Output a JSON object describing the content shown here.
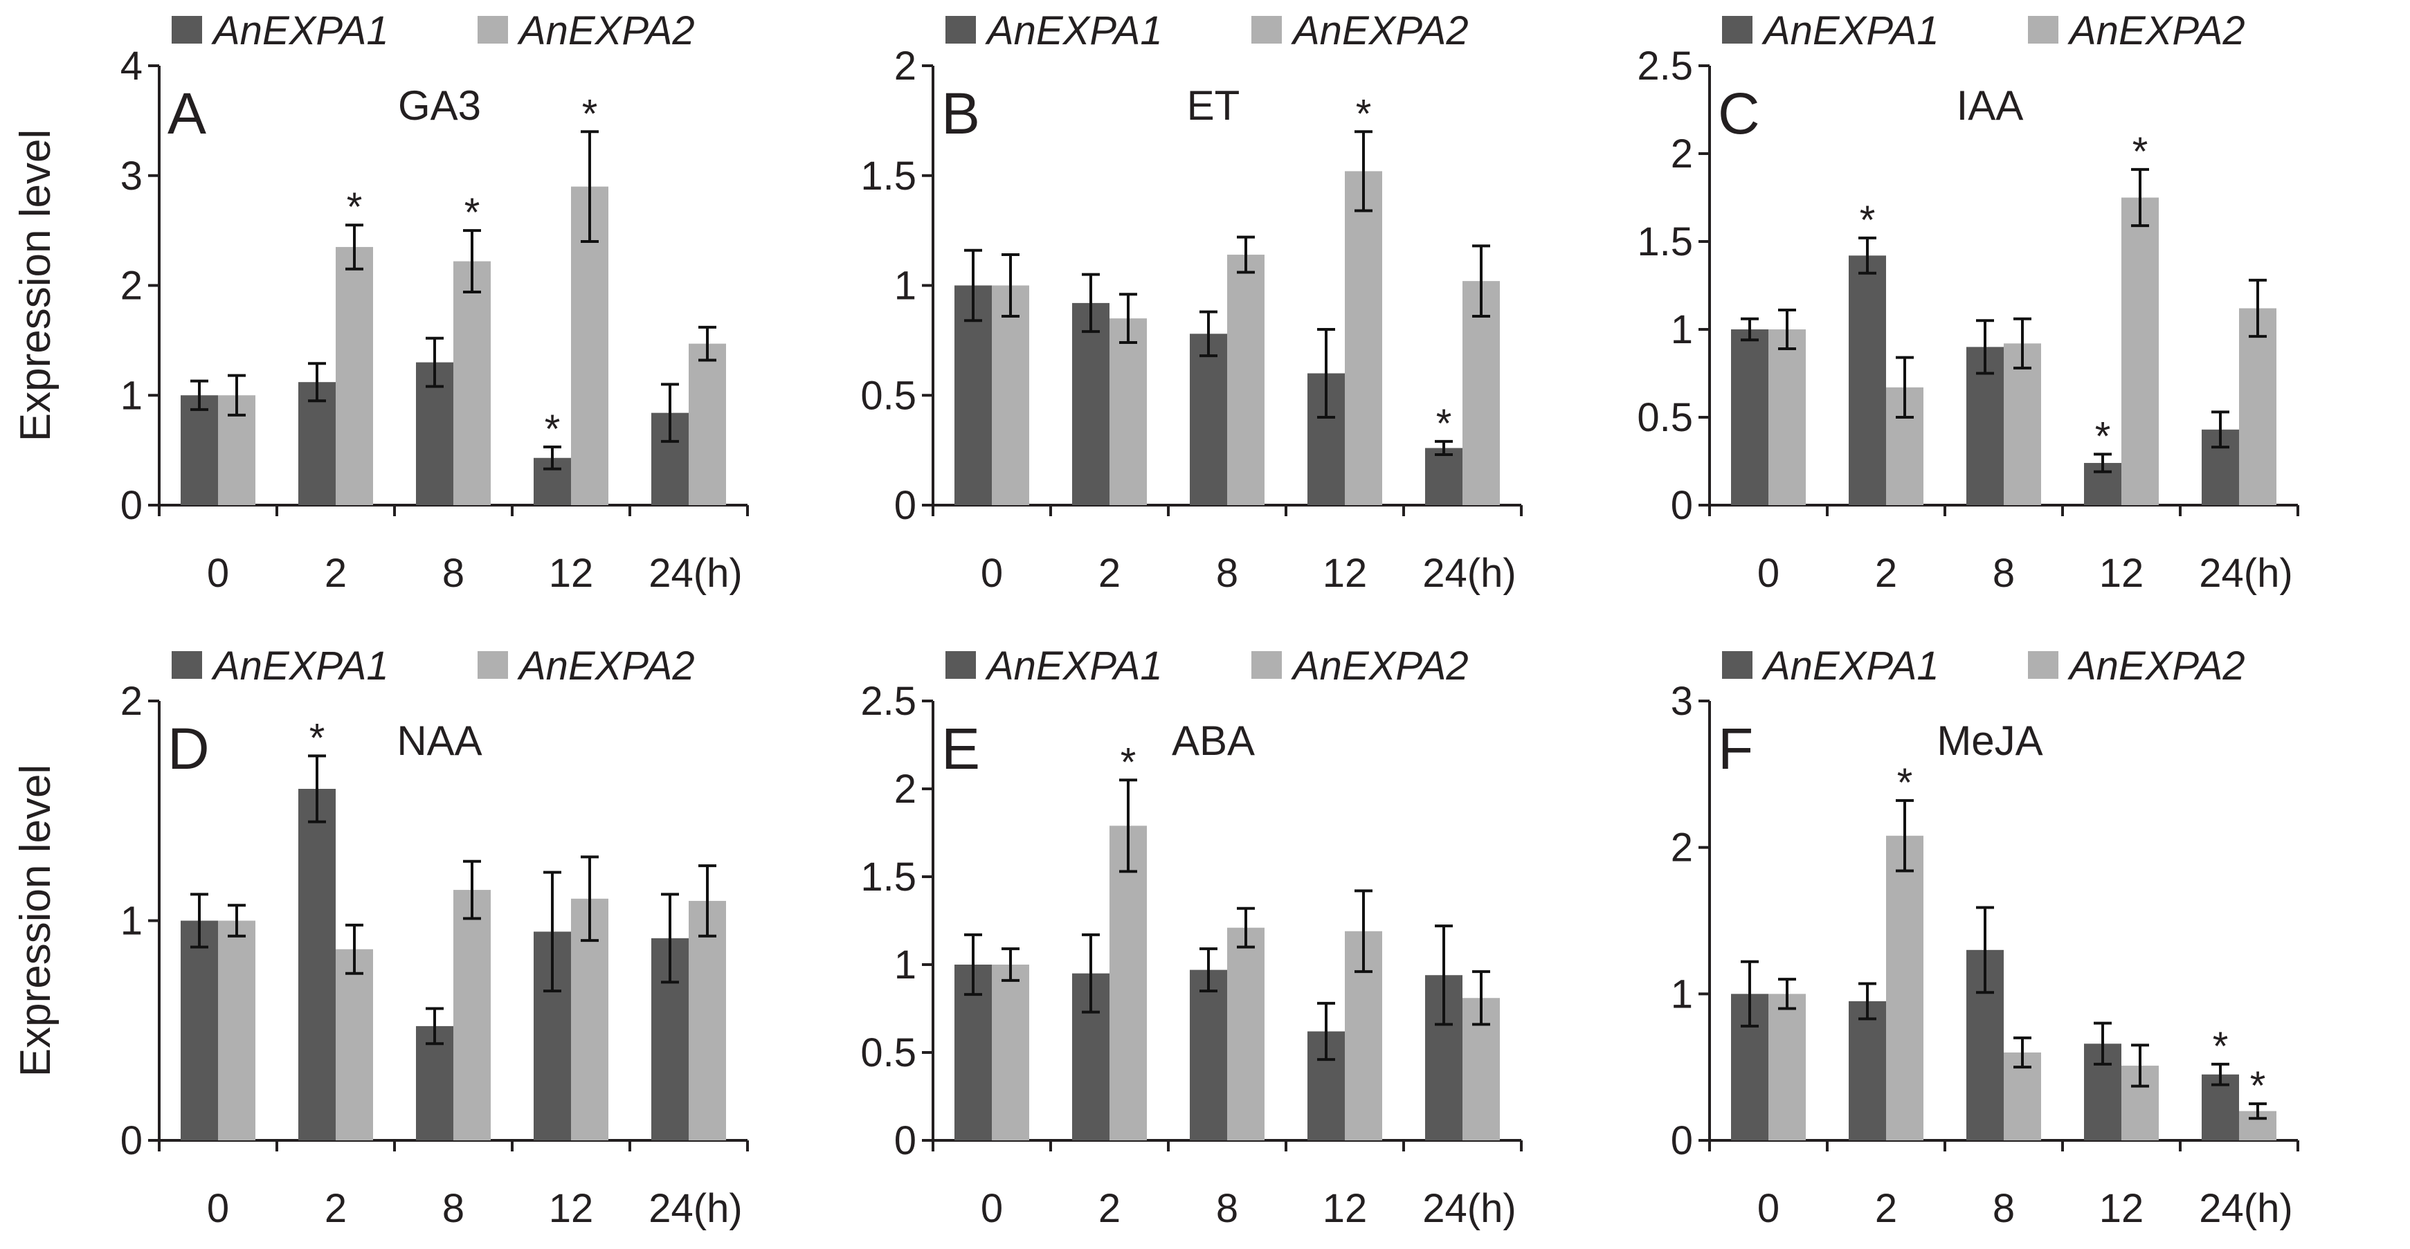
{
  "colors": {
    "series1": "#595959",
    "series2": "#b0b0b0",
    "axis": "#231f20"
  },
  "chart_data": [
    {
      "type": "bar",
      "panel": "A",
      "title": "GA3",
      "ylabel": "Expression level",
      "categories": [
        "0",
        "2",
        "8",
        "12",
        "24(h)"
      ],
      "ylim": [
        0,
        4
      ],
      "yticks": [
        "0",
        "1",
        "2",
        "3",
        "4"
      ],
      "series": [
        {
          "name": "AnEXPA1",
          "values": [
            1.0,
            1.12,
            1.3,
            0.43,
            0.84
          ],
          "errors": [
            0.13,
            0.17,
            0.22,
            0.1,
            0.26
          ],
          "sig": [
            false,
            false,
            false,
            true,
            false
          ]
        },
        {
          "name": "AnEXPA2",
          "values": [
            1.0,
            2.35,
            2.22,
            2.9,
            1.47
          ],
          "errors": [
            0.18,
            0.2,
            0.28,
            0.5,
            0.15
          ],
          "sig": [
            false,
            true,
            true,
            true,
            false
          ]
        }
      ]
    },
    {
      "type": "bar",
      "panel": "B",
      "title": "ET",
      "ylabel": "",
      "categories": [
        "0",
        "2",
        "8",
        "12",
        "24(h)"
      ],
      "ylim": [
        0,
        2
      ],
      "yticks": [
        "0",
        "0.5",
        "1",
        "1.5",
        "2"
      ],
      "series": [
        {
          "name": "AnEXPA1",
          "values": [
            1.0,
            0.92,
            0.78,
            0.6,
            0.26
          ],
          "errors": [
            0.16,
            0.13,
            0.1,
            0.2,
            0.03
          ],
          "sig": [
            false,
            false,
            false,
            false,
            true
          ]
        },
        {
          "name": "AnEXPA2",
          "values": [
            1.0,
            0.85,
            1.14,
            1.52,
            1.02
          ],
          "errors": [
            0.14,
            0.11,
            0.08,
            0.18,
            0.16
          ],
          "sig": [
            false,
            false,
            false,
            true,
            false
          ]
        }
      ]
    },
    {
      "type": "bar",
      "panel": "C",
      "title": "IAA",
      "ylabel": "",
      "categories": [
        "0",
        "2",
        "8",
        "12",
        "24(h)"
      ],
      "ylim": [
        0,
        2.5
      ],
      "yticks": [
        "0",
        "0.5",
        "1",
        "1.5",
        "2",
        "2.5"
      ],
      "series": [
        {
          "name": "AnEXPA1",
          "values": [
            1.0,
            1.42,
            0.9,
            0.24,
            0.43
          ],
          "errors": [
            0.06,
            0.1,
            0.15,
            0.05,
            0.1
          ],
          "sig": [
            false,
            true,
            false,
            true,
            false
          ]
        },
        {
          "name": "AnEXPA2",
          "values": [
            1.0,
            0.67,
            0.92,
            1.75,
            1.12
          ],
          "errors": [
            0.11,
            0.17,
            0.14,
            0.16,
            0.16
          ],
          "sig": [
            false,
            false,
            false,
            true,
            false
          ]
        }
      ]
    },
    {
      "type": "bar",
      "panel": "D",
      "title": "NAA",
      "ylabel": "Expression level",
      "categories": [
        "0",
        "2",
        "8",
        "12",
        "24(h)"
      ],
      "ylim": [
        0,
        2
      ],
      "yticks": [
        "0",
        "1",
        "2"
      ],
      "series": [
        {
          "name": "AnEXPA1",
          "values": [
            1.0,
            1.6,
            0.52,
            0.95,
            0.92
          ],
          "errors": [
            0.12,
            0.15,
            0.08,
            0.27,
            0.2
          ],
          "sig": [
            false,
            true,
            false,
            false,
            false
          ]
        },
        {
          "name": "AnEXPA2",
          "values": [
            1.0,
            0.87,
            1.14,
            1.1,
            1.09
          ],
          "errors": [
            0.07,
            0.11,
            0.13,
            0.19,
            0.16
          ],
          "sig": [
            false,
            false,
            false,
            false,
            false
          ]
        }
      ]
    },
    {
      "type": "bar",
      "panel": "E",
      "title": "ABA",
      "ylabel": "",
      "categories": [
        "0",
        "2",
        "8",
        "12",
        "24(h)"
      ],
      "ylim": [
        0,
        2.5
      ],
      "yticks": [
        "0",
        "0.5",
        "1",
        "1.5",
        "2",
        "2.5"
      ],
      "series": [
        {
          "name": "AnEXPA1",
          "values": [
            1.0,
            0.95,
            0.97,
            0.62,
            0.94
          ],
          "errors": [
            0.17,
            0.22,
            0.12,
            0.16,
            0.28
          ],
          "sig": [
            false,
            false,
            false,
            false,
            false
          ]
        },
        {
          "name": "AnEXPA2",
          "values": [
            1.0,
            1.79,
            1.21,
            1.19,
            0.81
          ],
          "errors": [
            0.09,
            0.26,
            0.11,
            0.23,
            0.15
          ],
          "sig": [
            false,
            true,
            false,
            false,
            false
          ]
        }
      ]
    },
    {
      "type": "bar",
      "panel": "F",
      "title": "MeJA",
      "ylabel": "",
      "categories": [
        "0",
        "2",
        "8",
        "12",
        "24(h)"
      ],
      "ylim": [
        0,
        3
      ],
      "yticks": [
        "0",
        "1",
        "2",
        "3"
      ],
      "series": [
        {
          "name": "AnEXPA1",
          "values": [
            1.0,
            0.95,
            1.3,
            0.66,
            0.45
          ],
          "errors": [
            0.22,
            0.12,
            0.29,
            0.14,
            0.07
          ],
          "sig": [
            false,
            false,
            false,
            false,
            true
          ]
        },
        {
          "name": "AnEXPA2",
          "values": [
            1.0,
            2.08,
            0.6,
            0.51,
            0.2
          ],
          "errors": [
            0.1,
            0.24,
            0.1,
            0.14,
            0.05
          ],
          "sig": [
            false,
            true,
            false,
            false,
            true
          ]
        }
      ]
    }
  ]
}
